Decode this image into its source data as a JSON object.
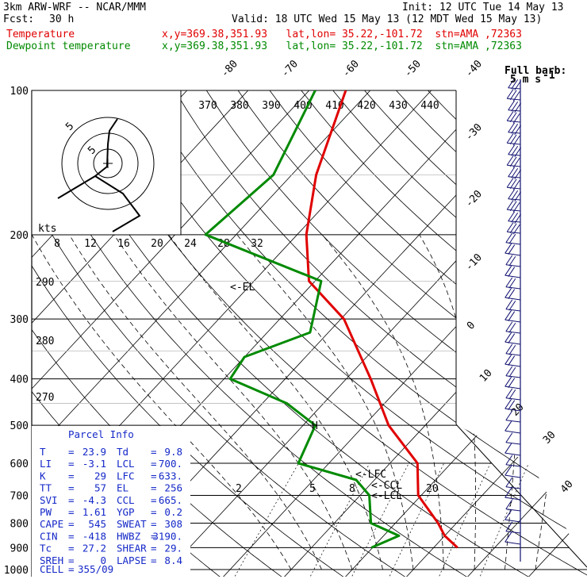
{
  "header": {
    "model": "3km ARW-WRF -- NCAR/MMM",
    "init": "Init: 12 UTC Tue 14 May 13",
    "fcst_label": "Fcst:",
    "fcst_value": "30 h",
    "valid": "Valid: 18 UTC Wed 15 May 13 (12 MDT Wed 15 May 13)",
    "temp_label": "Temperature",
    "dewp_label": "Dewpoint temperature",
    "location": "x,y=369.38,351.93   lat,lon= 35.22,-101.72  stn=AMA ,72363"
  },
  "colors": {
    "temperature": "#e00000",
    "dewpoint": "#008a00",
    "parcel_info": "#1428c8",
    "wind": "#101070",
    "adiabat": "#000000"
  },
  "chart_data": {
    "type": "line",
    "diagram": "skew-T log-P",
    "pressure_levels": [
      "100",
      "200",
      "300",
      "400",
      "500",
      "600",
      "700",
      "800",
      "900",
      "1000"
    ],
    "top_isotherm_labels": [
      "-80",
      "-70",
      "-60",
      "-50",
      "-40"
    ],
    "right_isotherm_labels": [
      "-30",
      "-20",
      "-10",
      "0",
      "10",
      "20",
      "30",
      "40"
    ],
    "theta_labels": [
      "370",
      "380",
      "390",
      "400",
      "410",
      "420",
      "430",
      "440"
    ],
    "theta_left_labels": [
      "290",
      "280",
      "270"
    ],
    "mixing_ratio_labels": [
      "2",
      "5",
      "8",
      "20"
    ],
    "hodograph": {
      "units_label": "kts",
      "ring_labels": [
        "5",
        "5"
      ],
      "speed_ticks": [
        "8",
        "12",
        "16",
        "20",
        "24",
        "28",
        "32"
      ]
    },
    "annotations": {
      "el": "<-EL",
      "lfc": "<-LFC",
      "ccl": "<-CCL",
      "lcl": "<-LCL",
      "h_mark": "H"
    },
    "wind_legend": {
      "title": "Full barb:",
      "value": "5 m s",
      "exponent": "-1"
    },
    "series": [
      {
        "name": "Temperature",
        "color": "#e00000",
        "points": [
          [
            900,
            23.9
          ],
          [
            850,
            20.0
          ],
          [
            800,
            17.0
          ],
          [
            700,
            9.5
          ],
          [
            600,
            4.5
          ],
          [
            500,
            -6.0
          ],
          [
            400,
            -16.0
          ],
          [
            300,
            -29.5
          ],
          [
            250,
            -41.0
          ],
          [
            200,
            -48.5
          ],
          [
            150,
            -56.0
          ],
          [
            100,
            -64.0
          ]
        ]
      },
      {
        "name": "Dewpoint temperature",
        "color": "#008a00",
        "points": [
          [
            900,
            9.8
          ],
          [
            850,
            12.5
          ],
          [
            800,
            6.0
          ],
          [
            700,
            1.5
          ],
          [
            650,
            -3.0
          ],
          [
            600,
            -15.0
          ],
          [
            500,
            -18.0
          ],
          [
            450,
            -26.0
          ],
          [
            400,
            -39.0
          ],
          [
            360,
            -40.0
          ],
          [
            320,
            -33.0
          ],
          [
            250,
            -39.0
          ],
          [
            200,
            -65.0
          ],
          [
            150,
            -63.0
          ],
          [
            100,
            -69.0
          ]
        ]
      }
    ]
  },
  "parcel_info": {
    "title": "Parcel Info",
    "rows": [
      {
        "l1": "T",
        "v1": "23.9",
        "l2": "Td",
        "v2": "9.8"
      },
      {
        "l1": "LI",
        "v1": "-3.1",
        "l2": "LCL",
        "v2": "700."
      },
      {
        "l1": "K",
        "v1": "29",
        "l2": "LFC",
        "v2": "633."
      },
      {
        "l1": "TT",
        "v1": "57",
        "l2": "EL",
        "v2": "256"
      },
      {
        "l1": "SVI",
        "v1": "-4.3",
        "l2": "CCL",
        "v2": "665."
      },
      {
        "l1": "PW",
        "v1": "1.61",
        "l2": "YGP",
        "v2": "0.2"
      },
      {
        "l1": "CAPE",
        "v1": "545",
        "l2": "SWEAT",
        "v2": "308"
      },
      {
        "l1": "CIN",
        "v1": "-418",
        "l2": "HWBZ",
        "v2": "3190."
      },
      {
        "l1": "Tc",
        "v1": "27.2",
        "l2": "SHEAR",
        "v2": "29."
      },
      {
        "l1": "SREH",
        "v1": "0",
        "l2": "LAPSE",
        "v2": "8.4"
      }
    ],
    "cell_label": "CELL",
    "cell_value": "355/09"
  }
}
